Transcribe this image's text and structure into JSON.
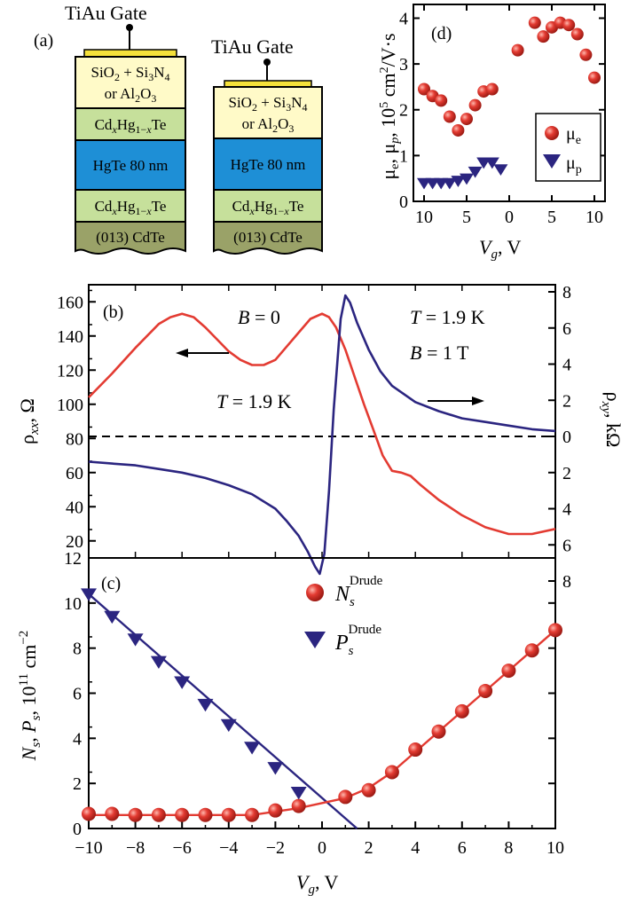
{
  "colors": {
    "red": "#e33b32",
    "blue": "#2b2580",
    "gate": "#f5e13a",
    "dielectric": "#fffac8",
    "cdhgte": "#c6e09b",
    "hgte": "#1e8fd6",
    "substrate": "#9aa268"
  },
  "panel_a": {
    "label": "(a)",
    "gate_left": "TiAu Gate",
    "gate_right": "TiAu Gate",
    "dielectric_line1": "SiO2 + Si3N4",
    "dielectric_line2": "or Al2O3",
    "cap": "CdxHg1−xTe",
    "well": "HgTe 80 nm",
    "buffer": "CdxHg1−xTe",
    "substrate": "(013) CdTe"
  },
  "chart_data": [
    {
      "panel": "(b)",
      "type": "line",
      "ylabel_left": "ρxx, Ω",
      "ylabel_right": "ρxy, kΩ",
      "ylim_left": [
        10,
        170
      ],
      "ylim_right": [
        -8,
        8
      ],
      "yticks_left": [
        "20",
        "40",
        "60",
        "80",
        "100",
        "120",
        "140",
        "160"
      ],
      "yticks_right": [
        "8",
        "6",
        "4",
        "2",
        "0",
        "2",
        "4",
        "6",
        "8"
      ],
      "annotations": [
        "B = 0",
        "T = 1.9 K",
        "T = 1.9 K",
        "B = 1 T"
      ],
      "series": [
        {
          "color": "#e33b32",
          "axis": "left",
          "x": [
            -10,
            -9,
            -8,
            -7,
            -6.5,
            -6,
            -5.5,
            -5,
            -4.5,
            -4,
            -3.5,
            -3,
            -2.5,
            -2,
            -1.5,
            -1,
            -0.5,
            0,
            0.3,
            0.6,
            1,
            1.4,
            1.8,
            2.2,
            2.6,
            3,
            3.4,
            3.8,
            4.2,
            5,
            6,
            7,
            8,
            9,
            10
          ],
          "values": [
            104,
            118,
            133,
            147,
            151,
            153,
            151,
            145,
            138,
            131,
            126,
            123,
            123,
            126,
            134,
            142,
            150,
            153,
            151,
            145,
            132,
            116,
            100,
            85,
            70,
            61,
            60,
            58,
            53,
            44,
            35,
            28,
            24,
            24,
            27
          ]
        },
        {
          "color": "#2b2580",
          "axis": "right",
          "x": [
            -10,
            -9,
            -8,
            -7,
            -6,
            -5,
            -4,
            -3,
            -2,
            -1.5,
            -1,
            -0.6,
            -0.3,
            -0.1,
            0.1,
            0.3,
            0.5,
            0.8,
            1,
            1.2,
            1.5,
            2,
            2.5,
            3,
            4,
            5,
            6,
            7,
            8,
            9,
            10
          ],
          "values": [
            -1.4,
            -1.5,
            -1.6,
            -1.8,
            -2.0,
            -2.3,
            -2.7,
            -3.2,
            -4.0,
            -4.7,
            -5.5,
            -6.4,
            -7.2,
            -7.6,
            -6.5,
            -3,
            1.5,
            6.5,
            7.8,
            7.4,
            6.3,
            4.8,
            3.6,
            2.8,
            1.9,
            1.4,
            1.0,
            0.8,
            0.6,
            0.4,
            0.3
          ]
        }
      ]
    },
    {
      "panel": "(c)",
      "type": "scatter",
      "xlabel": "Vg, V",
      "ylabel": "Ns, Ps, 10^11 cm^-2",
      "xlim": [
        -10,
        10
      ],
      "ylim": [
        0,
        12
      ],
      "xticks": [
        "−10",
        "−8",
        "−6",
        "−4",
        "−2",
        "0",
        "2",
        "4",
        "6",
        "8",
        "10"
      ],
      "yticks": [
        "0",
        "2",
        "4",
        "6",
        "8",
        "10",
        "12"
      ],
      "series": [
        {
          "name": "Ns Drude",
          "color": "#e33b32",
          "marker": "circle",
          "x": [
            -10,
            -9,
            -8,
            -7,
            -6,
            -5,
            -4,
            -3,
            -2,
            -1,
            1,
            2,
            3,
            4,
            5,
            6,
            7,
            8,
            9,
            10
          ],
          "values": [
            0.65,
            0.65,
            0.6,
            0.6,
            0.6,
            0.6,
            0.6,
            0.6,
            0.8,
            1.0,
            1.4,
            1.7,
            2.5,
            3.5,
            4.3,
            5.2,
            6.1,
            7.0,
            7.9,
            8.8
          ]
        },
        {
          "name": "Ps Drude",
          "color": "#2b2580",
          "marker": "triangle-down",
          "x": [
            -10,
            -9,
            -8,
            -7,
            -6,
            -5,
            -4,
            -3,
            -2,
            -1
          ],
          "values": [
            10.4,
            9.4,
            8.4,
            7.4,
            6.5,
            5.5,
            4.6,
            3.6,
            2.7,
            1.6
          ]
        }
      ],
      "fits": [
        {
          "color": "#2b2580",
          "x": [
            -10,
            1.5
          ],
          "values": [
            10.4,
            0
          ]
        },
        {
          "color": "#e33b32",
          "x": [
            -10,
            -3,
            -1,
            1,
            2,
            3,
            4,
            5,
            6,
            7,
            8,
            9,
            10
          ],
          "values": [
            0.6,
            0.6,
            0.9,
            1.35,
            1.8,
            2.5,
            3.4,
            4.3,
            5.2,
            6.1,
            7.0,
            7.9,
            8.8
          ]
        }
      ],
      "legend": {
        "position": "top-center",
        "entries": [
          "N_s^Drude",
          "P_s^Drude"
        ]
      }
    },
    {
      "panel": "(d)",
      "type": "scatter",
      "xlabel": "Vg, V",
      "ylabel": "μe, μp, 10^5 cm^2/V·s",
      "xlim": [
        -10,
        10
      ],
      "ylim": [
        0,
        4.3
      ],
      "xticks": [
        "10",
        "5",
        "0",
        "5",
        "10"
      ],
      "yticks": [
        "0",
        "1",
        "2",
        "3",
        "4"
      ],
      "series": [
        {
          "name": "μe",
          "color": "#e33b32",
          "marker": "circle",
          "x": [
            -10,
            -9,
            -8,
            -7,
            -6,
            -5,
            -4,
            -3,
            -2,
            1,
            3,
            4,
            5,
            6,
            7,
            8,
            9,
            10
          ],
          "values": [
            2.45,
            2.3,
            2.2,
            1.85,
            1.55,
            1.8,
            2.1,
            2.4,
            2.45,
            3.3,
            3.9,
            3.6,
            3.8,
            3.9,
            3.85,
            3.65,
            3.2,
            2.7
          ]
        },
        {
          "name": "μp",
          "color": "#2b2580",
          "marker": "triangle-down",
          "x": [
            -10,
            -9,
            -8,
            -7,
            -6,
            -5,
            -4,
            -3,
            -2,
            -1
          ],
          "values": [
            0.4,
            0.4,
            0.4,
            0.4,
            0.45,
            0.5,
            0.65,
            0.85,
            0.85,
            0.7
          ]
        }
      ],
      "legend": {
        "position": "bottom-right",
        "entries": [
          "μe",
          "μp"
        ]
      }
    }
  ]
}
